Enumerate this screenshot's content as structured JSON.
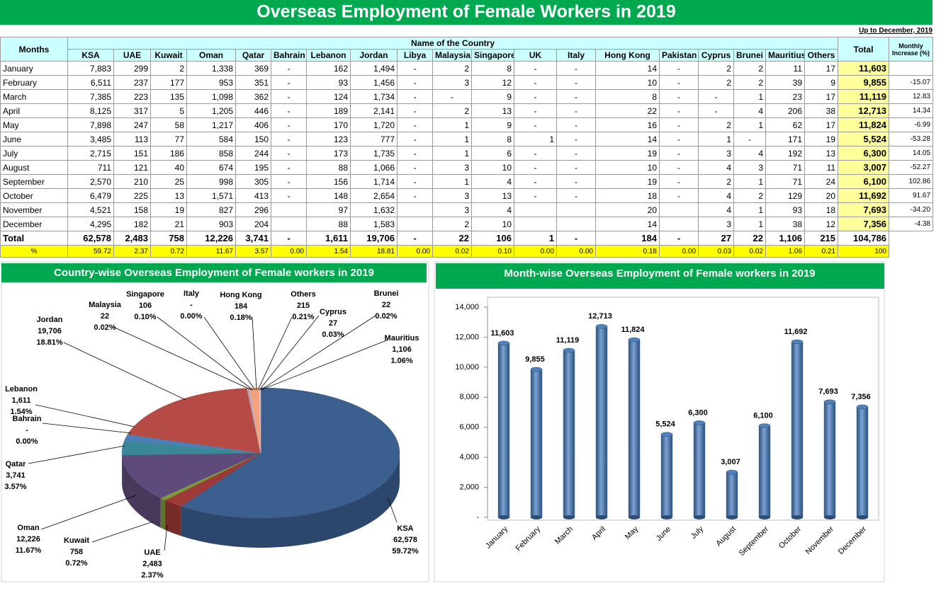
{
  "title": "Overseas Employment of Female Workers in 2019",
  "table": {
    "note": "Up to December, 2019",
    "months_header": "Months",
    "group_header": "Name of the Country",
    "total_header": "Total",
    "increase_header": [
      "Monthly",
      "Increase (%)"
    ],
    "columns": [
      "KSA",
      "UAE",
      "Kuwait",
      "Oman",
      "Qatar",
      "Bahrain",
      "Lebanon",
      "Jordan",
      "Libya",
      "Malaysia",
      "Singapore",
      "UK",
      "Italy",
      "Hong Kong",
      "Pakistan",
      "Cyprus",
      "Brunei",
      "Mauritius",
      "Others"
    ],
    "rows": [
      {
        "month": "January",
        "cells": [
          "7,883",
          "299",
          "2",
          "1,338",
          "369",
          "-",
          "162",
          "1,494",
          "-",
          "2",
          "8",
          "-",
          "-",
          "14",
          "-",
          "2",
          "2",
          "11",
          "17"
        ],
        "total": "11,603",
        "increase": null
      },
      {
        "month": "February",
        "cells": [
          "6,511",
          "237",
          "177",
          "953",
          "351",
          "-",
          "93",
          "1,456",
          "-",
          "3",
          "12",
          "-",
          "-",
          "10",
          "-",
          "2",
          "2",
          "39",
          "9"
        ],
        "total": "9,855",
        "increase": "-15.07"
      },
      {
        "month": "March",
        "cells": [
          "7,385",
          "223",
          "135",
          "1,098",
          "362",
          "-",
          "124",
          "1,734",
          "-",
          "-",
          "9",
          "-",
          "-",
          "8",
          "-",
          "-",
          "1",
          "23",
          "17"
        ],
        "total": "11,119",
        "increase": "12.83"
      },
      {
        "month": "April",
        "cells": [
          "8,125",
          "317",
          "5",
          "1,205",
          "446",
          "-",
          "189",
          "2,141",
          "-",
          "2",
          "13",
          "-",
          "-",
          "22",
          "-",
          "-",
          "4",
          "206",
          "38"
        ],
        "total": "12,713",
        "increase": "14.34"
      },
      {
        "month": "May",
        "cells": [
          "7,898",
          "247",
          "58",
          "1,217",
          "406",
          "-",
          "170",
          "1,720",
          "-",
          "1",
          "9",
          "-",
          "-",
          "16",
          "-",
          "2",
          "1",
          "62",
          "17"
        ],
        "total": "11,824",
        "increase": "-6.99"
      },
      {
        "month": "June",
        "cells": [
          "3,485",
          "113",
          "77",
          "584",
          "150",
          "-",
          "123",
          "777",
          "-",
          "1",
          "8",
          "1",
          "-",
          "14",
          "-",
          "1",
          "-",
          "171",
          "19"
        ],
        "total": "5,524",
        "increase": "-53.28"
      },
      {
        "month": "July",
        "cells": [
          "2,715",
          "151",
          "186",
          "858",
          "244",
          "-",
          "173",
          "1,735",
          "-",
          "1",
          "6",
          "-",
          "-",
          "19",
          "-",
          "3",
          "4",
          "192",
          "13"
        ],
        "total": "6,300",
        "increase": "14.05"
      },
      {
        "month": "August",
        "cells": [
          "711",
          "121",
          "40",
          "674",
          "195",
          "-",
          "88",
          "1,066",
          "-",
          "3",
          "10",
          "-",
          "-",
          "10",
          "-",
          "4",
          "3",
          "71",
          "11"
        ],
        "total": "3,007",
        "increase": "-52.27"
      },
      {
        "month": "September",
        "cells": [
          "2,570",
          "210",
          "25",
          "998",
          "305",
          "-",
          "156",
          "1,714",
          "-",
          "1",
          "4",
          "-",
          "-",
          "19",
          "-",
          "2",
          "1",
          "71",
          "24"
        ],
        "total": "6,100",
        "increase": "102.86"
      },
      {
        "month": "October",
        "cells": [
          "6,479",
          "225",
          "13",
          "1,571",
          "413",
          "-",
          "148",
          "2,654",
          "-",
          "3",
          "13",
          "-",
          "-",
          "18",
          "-",
          "4",
          "2",
          "129",
          "20"
        ],
        "total": "11,692",
        "increase": "91.67"
      },
      {
        "month": "November",
        "cells": [
          "4,521",
          "158",
          "19",
          "827",
          "296",
          null,
          "97",
          "1,632",
          null,
          "3",
          "4",
          null,
          null,
          "20",
          null,
          "4",
          "1",
          "93",
          "18"
        ],
        "total": "7,693",
        "increase": "-34.20"
      },
      {
        "month": "December",
        "cells": [
          "4,295",
          "182",
          "21",
          "903",
          "204",
          null,
          "88",
          "1,583",
          null,
          "2",
          "10",
          null,
          null,
          "14",
          null,
          "3",
          "1",
          "38",
          "12"
        ],
        "total": "7,356",
        "increase": "-4.38"
      }
    ],
    "total_row": {
      "label": "Total",
      "cells": [
        "62,578",
        "2,483",
        "758",
        "12,226",
        "3,741",
        "-",
        "1,611",
        "19,706",
        "-",
        "22",
        "106",
        "1",
        "-",
        "184",
        "-",
        "27",
        "22",
        "1,106",
        "215"
      ],
      "total": "104,786"
    },
    "percent_row": {
      "label": "%",
      "cells": [
        "59.72",
        "2.37",
        "0.72",
        "11.67",
        "3.57",
        "0.00",
        "1.54",
        "18.81",
        "0.00",
        "0.02",
        "0.10",
        "0.00",
        "0.00",
        "0.18",
        "0.00",
        "0.03",
        "0.02",
        "1.06",
        "0.21"
      ],
      "total": "100"
    }
  },
  "chart_data": [
    {
      "type": "pie",
      "title": "Country-wise Overseas Employment of Female workers in 2019",
      "categories": [
        "KSA",
        "UAE",
        "Kuwait",
        "Oman",
        "Qatar",
        "Bahrain",
        "Lebanon",
        "Jordan",
        "Malaysia",
        "Singapore",
        "Italy",
        "Hong Kong",
        "Cyprus",
        "Brunei",
        "Mauritius",
        "Others"
      ],
      "values": [
        62578,
        2483,
        758,
        12226,
        3741,
        0,
        1611,
        19706,
        22,
        106,
        0,
        184,
        27,
        22,
        1106,
        215
      ],
      "value_labels": [
        "62,578",
        "2,483",
        "758",
        "12,226",
        "3,741",
        "-",
        "1,611",
        "19,706",
        "22",
        "106",
        "-",
        "184",
        "27",
        "22",
        "1,106",
        "215"
      ],
      "percent_labels": [
        "59.72%",
        "2.37%",
        "0.72%",
        "11.67%",
        "3.57%",
        "0.00%",
        "1.54%",
        "18.81%",
        "0.02%",
        "0.10%",
        "0.00%",
        "0.18%",
        "0.03%",
        "0.02%",
        "1.06%",
        "0.21%"
      ],
      "colors": [
        "#3b5f8e",
        "#9d3a37",
        "#7c9a3c",
        "#5f4b7b",
        "#3a8799",
        "#d9853b",
        "#4b7fb8",
        "#b64a44",
        "#8eaad6",
        "#d99695",
        "#c3d69b",
        "#b3a2c7",
        "#93cddd",
        "#fac090",
        "#f2a27c",
        "#e6b9b8"
      ]
    },
    {
      "type": "bar",
      "title": "Month-wise Overseas Employment of Female workers in 2019",
      "categories": [
        "January",
        "February",
        "March",
        "April",
        "May",
        "June",
        "July",
        "August",
        "September",
        "October",
        "November",
        "December"
      ],
      "values": [
        11603,
        9855,
        11119,
        12713,
        11824,
        5524,
        6300,
        3007,
        6100,
        11692,
        7693,
        7356
      ],
      "value_labels": [
        "11,603",
        "9,855",
        "11,119",
        "12,713",
        "11,824",
        "5,524",
        "6,300",
        "3,007",
        "6,100",
        "11,692",
        "7,693",
        "7,356"
      ],
      "color": "#4f81bd",
      "ylim": [
        0,
        14000
      ],
      "yticks": [
        {
          "value": 0,
          "label": "-"
        },
        {
          "value": 2000,
          "label": "2,000"
        },
        {
          "value": 4000,
          "label": "4,000"
        },
        {
          "value": 6000,
          "label": "6,000"
        },
        {
          "value": 8000,
          "label": "8,000"
        },
        {
          "value": 10000,
          "label": "10,000"
        },
        {
          "value": 12000,
          "label": "12,000"
        },
        {
          "value": 14000,
          "label": "14,000"
        }
      ]
    }
  ]
}
